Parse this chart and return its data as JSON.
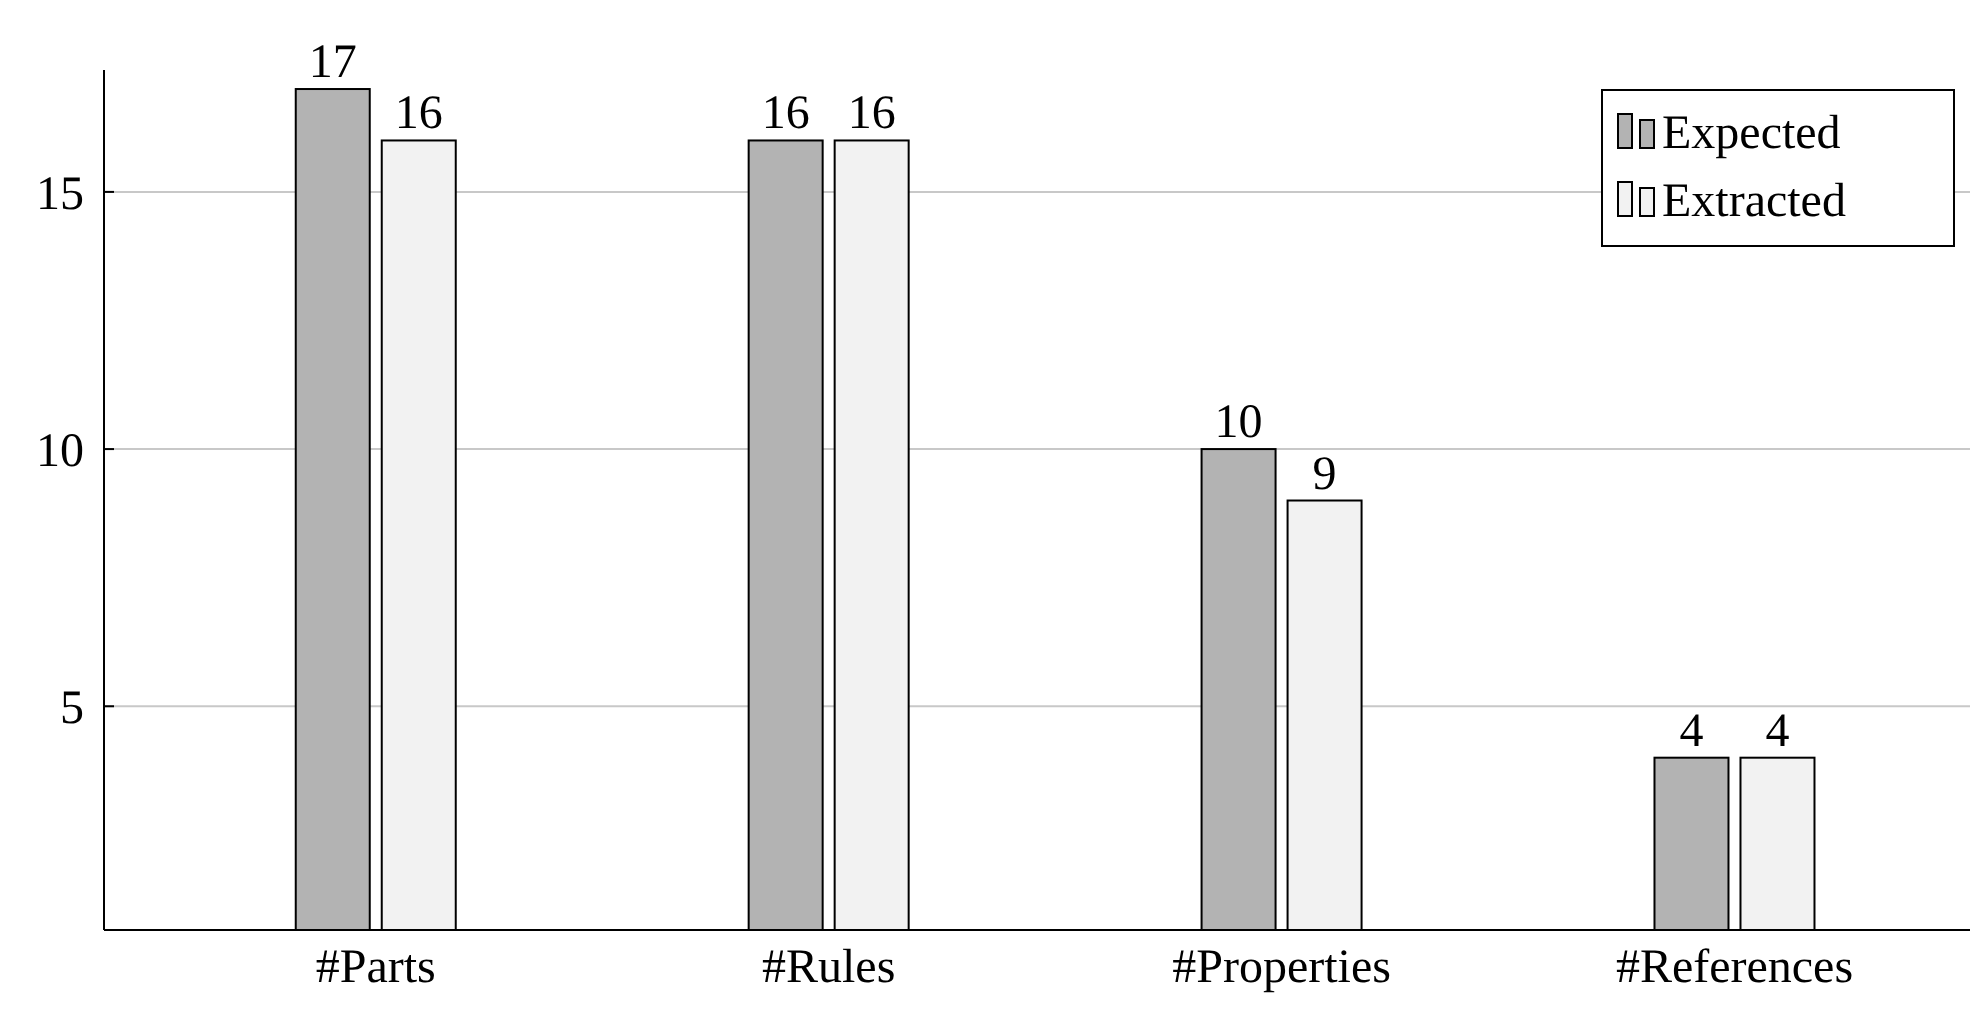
{
  "chart_data": {
    "type": "bar",
    "categories": [
      "#Parts",
      "#Rules",
      "#Properties",
      "#References"
    ],
    "series": [
      {
        "name": "Expected",
        "color": "#b3b3b3",
        "values": [
          17,
          16,
          10,
          4
        ]
      },
      {
        "name": "Extracted",
        "color": "#f2f2f2",
        "values": [
          16,
          16,
          9,
          4
        ]
      }
    ],
    "ylim": [
      0.65,
      17.37
    ],
    "yticks": [
      5,
      10,
      15
    ],
    "grid": "y",
    "legend": "top right",
    "data_labels": true
  }
}
